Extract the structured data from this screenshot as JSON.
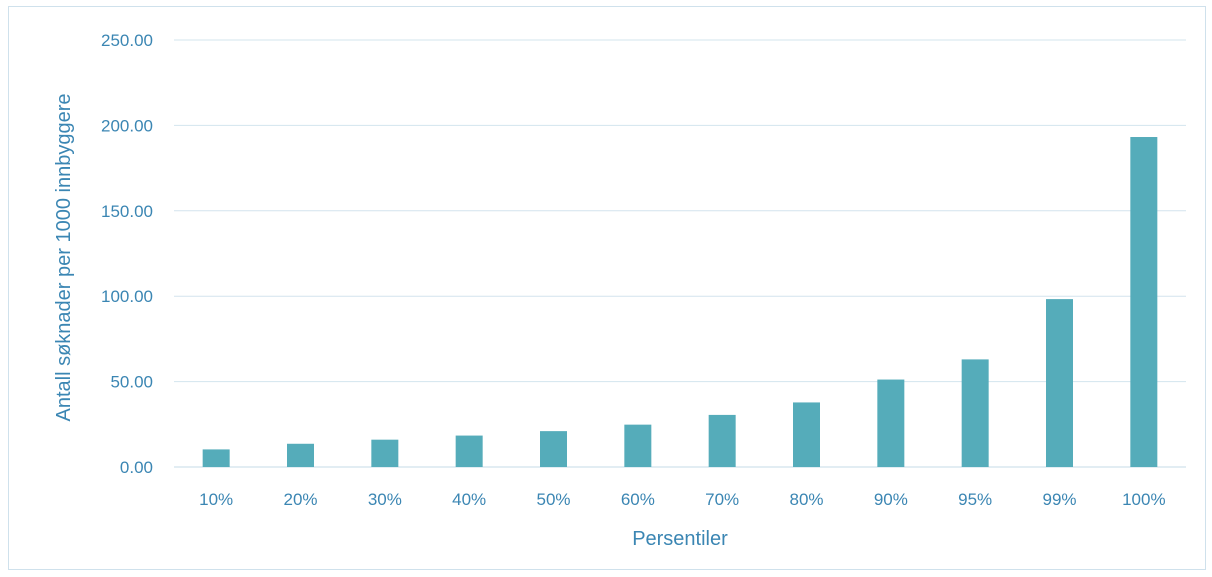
{
  "chart_data": {
    "type": "bar",
    "title": "",
    "xlabel": "Persentiler",
    "ylabel": "Antall søknader per 1000 innbyggere",
    "categories": [
      "10%",
      "20%",
      "30%",
      "40%",
      "50%",
      "60%",
      "70%",
      "80%",
      "90%",
      "95%",
      "99%",
      "100%"
    ],
    "values": [
      10.3,
      13.6,
      16.0,
      18.4,
      21.0,
      24.8,
      30.5,
      37.8,
      51.2,
      63.0,
      98.3,
      193.2
    ],
    "ylim": [
      0,
      250
    ],
    "yticks": [
      "0.00",
      "50.00",
      "100.00",
      "150.00",
      "200.00",
      "250.00"
    ],
    "ytick_values": [
      0,
      50,
      100,
      150,
      200,
      250
    ],
    "grid": true,
    "legend": "none",
    "colors": {
      "bar": "#55acba",
      "text": "#3b86b3",
      "grid": "#d3e4ee"
    }
  }
}
